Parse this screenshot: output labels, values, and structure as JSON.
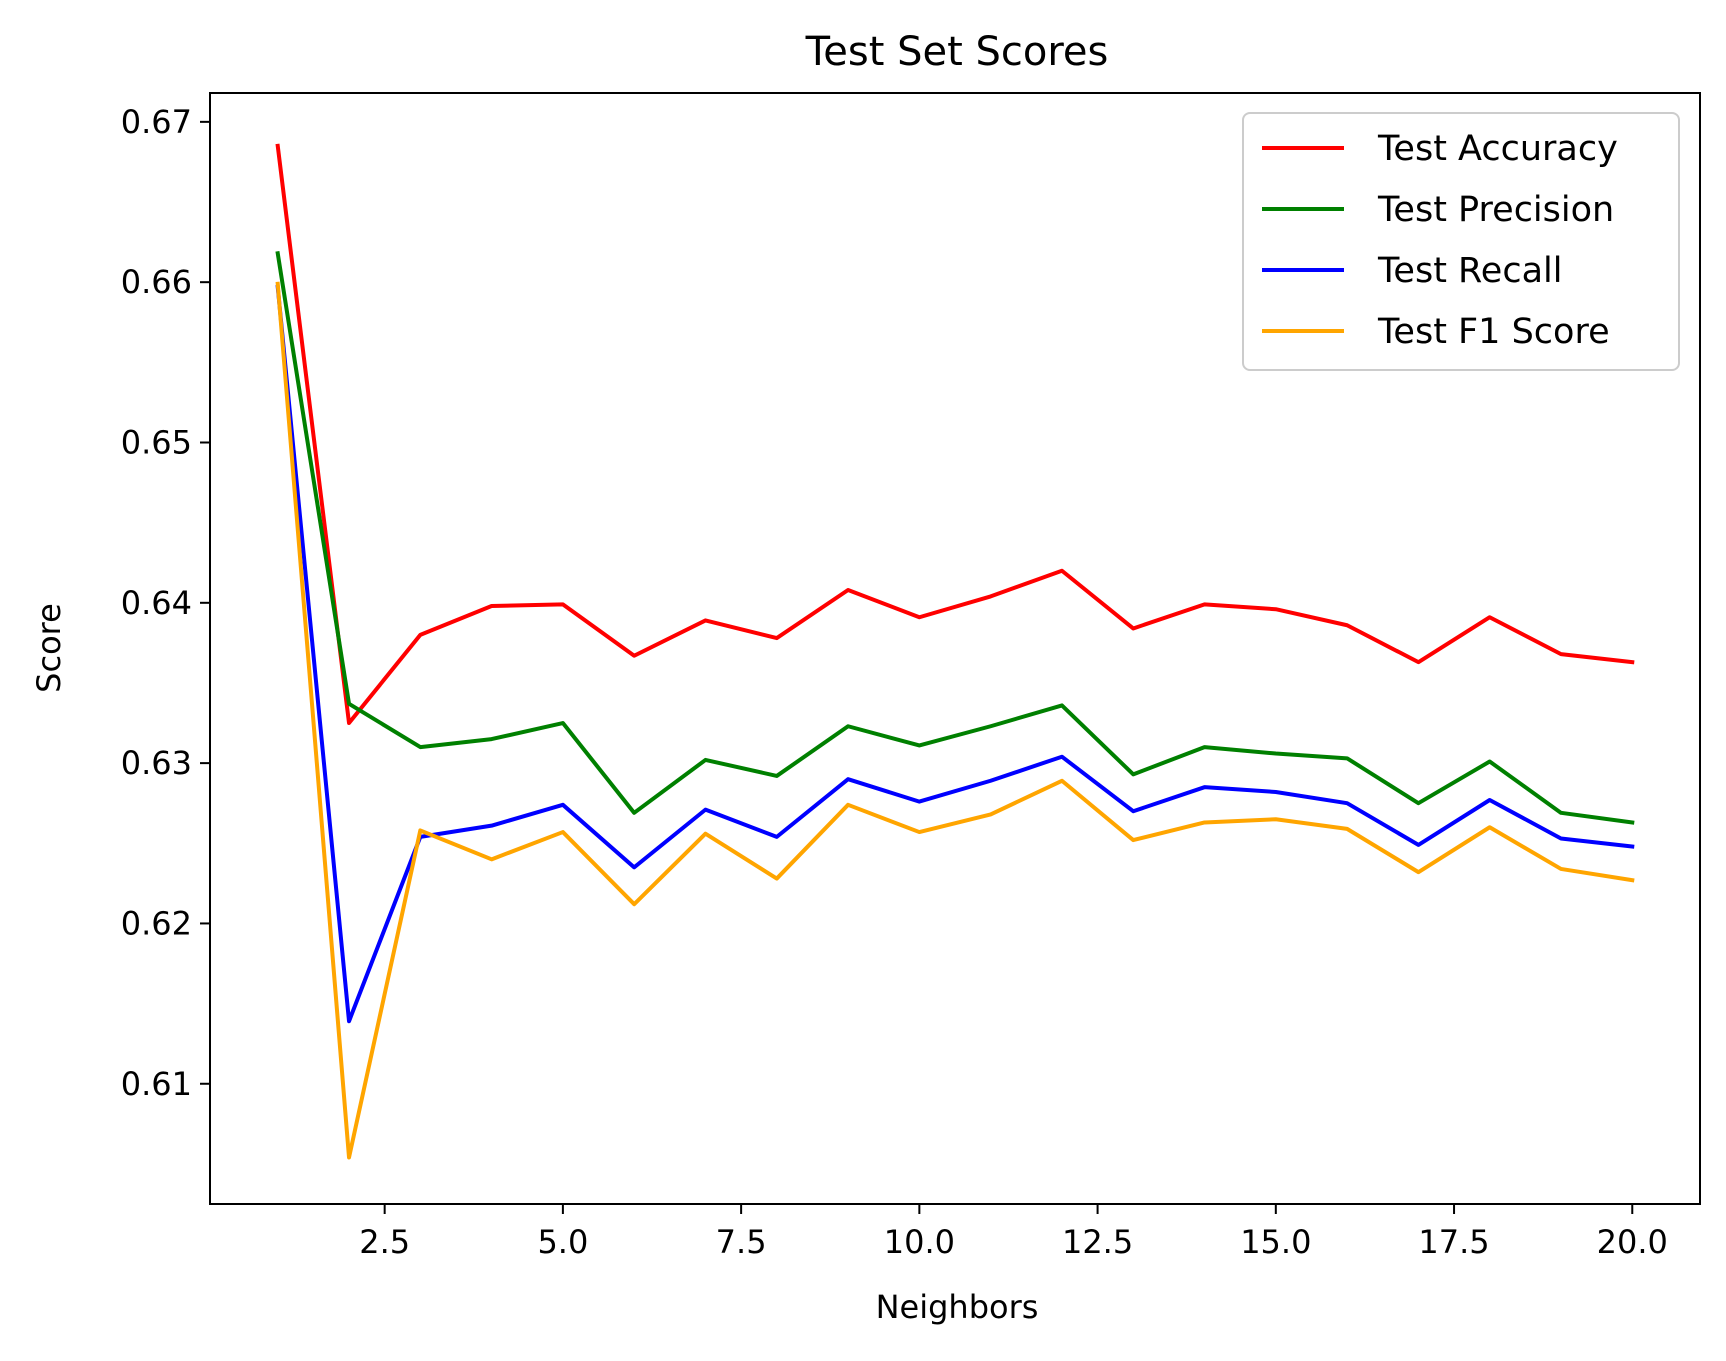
{
  "chart_data": {
    "type": "line",
    "title": "Test Set Scores",
    "xlabel": "Neighbors",
    "ylabel": "Score",
    "xlim": [
      0.05,
      20.95
    ],
    "ylim": [
      0.6025,
      0.6718
    ],
    "x_ticks": [
      2.5,
      5.0,
      7.5,
      10.0,
      12.5,
      15.0,
      17.5,
      20.0
    ],
    "x_tick_labels": [
      "2.5",
      "5.0",
      "7.5",
      "10.0",
      "12.5",
      "15.0",
      "17.5",
      "20.0"
    ],
    "y_ticks": [
      0.61,
      0.62,
      0.63,
      0.64,
      0.65,
      0.66,
      0.67
    ],
    "y_tick_labels": [
      "0.61",
      "0.62",
      "0.63",
      "0.64",
      "0.65",
      "0.66",
      "0.67"
    ],
    "grid": false,
    "legend_position": "top-right",
    "x": [
      1,
      2,
      3,
      4,
      5,
      6,
      7,
      8,
      9,
      10,
      11,
      12,
      13,
      14,
      15,
      16,
      17,
      18,
      19,
      20
    ],
    "series": [
      {
        "name": "Test Accuracy",
        "color": "#ff0000",
        "values": [
          0.6685,
          0.6325,
          0.638,
          0.6398,
          0.6399,
          0.6367,
          0.6389,
          0.6378,
          0.6408,
          0.6391,
          0.6404,
          0.642,
          0.6384,
          0.6399,
          0.6396,
          0.6386,
          0.6363,
          0.6391,
          0.6368,
          0.6363
        ]
      },
      {
        "name": "Test Precision",
        "color": "#008000",
        "values": [
          0.6618,
          0.6337,
          0.631,
          0.6315,
          0.6325,
          0.6269,
          0.6302,
          0.6292,
          0.6323,
          0.6311,
          0.6323,
          0.6336,
          0.6293,
          0.631,
          0.6306,
          0.6303,
          0.6275,
          0.6301,
          0.6269,
          0.6263
        ]
      },
      {
        "name": "Test Recall",
        "color": "#0000ff",
        "values": [
          0.6597,
          0.6139,
          0.6254,
          0.6261,
          0.6274,
          0.6235,
          0.6271,
          0.6254,
          0.629,
          0.6276,
          0.6289,
          0.6304,
          0.627,
          0.6285,
          0.6282,
          0.6275,
          0.6249,
          0.6277,
          0.6253,
          0.6248
        ]
      },
      {
        "name": "Test F1 Score",
        "color": "#ffa500",
        "values": [
          0.6599,
          0.6054,
          0.6258,
          0.624,
          0.6257,
          0.6212,
          0.6256,
          0.6228,
          0.6274,
          0.6257,
          0.6268,
          0.6289,
          0.6252,
          0.6263,
          0.6265,
          0.6259,
          0.6232,
          0.626,
          0.6234,
          0.6227
        ]
      }
    ]
  }
}
